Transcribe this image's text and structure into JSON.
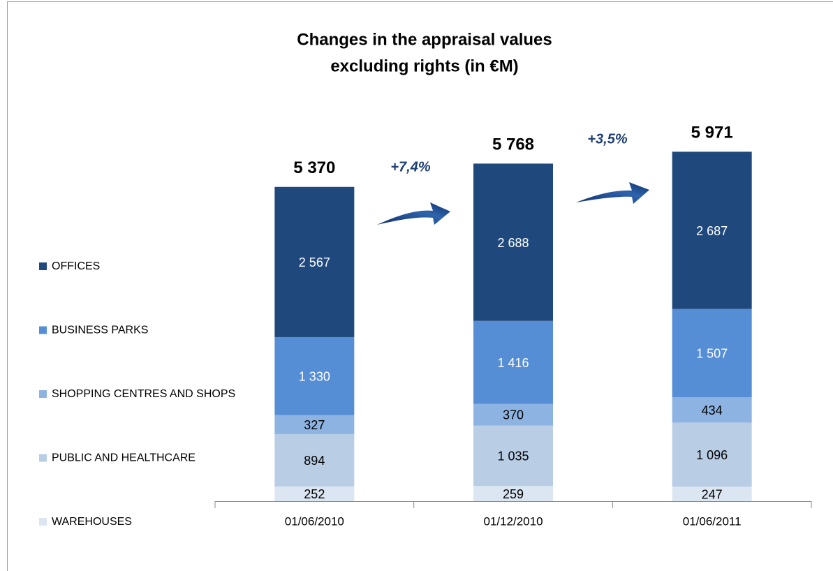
{
  "chart_data": {
    "type": "stacked_bar",
    "title": [
      "Changes in the appraisal values",
      "excluding rights (in €M)"
    ],
    "categories": [
      "01/06/2010",
      "01/12/2010",
      "01/06/2011"
    ],
    "series": [
      {
        "name": "WAREHOUSES",
        "color": "#dce6f2",
        "values": [
          252,
          259,
          247
        ],
        "value_labels": [
          "252",
          "259",
          "247"
        ]
      },
      {
        "name": "PUBLIC AND HEALTHCARE",
        "color": "#b9cde5",
        "values": [
          894,
          1035,
          1096
        ],
        "value_labels": [
          "894",
          "1 035",
          "1 096"
        ]
      },
      {
        "name": "SHOPPING CENTRES AND SHOPS",
        "color": "#8db3e2",
        "values": [
          327,
          370,
          434
        ],
        "value_labels": [
          "327",
          "370",
          "434"
        ]
      },
      {
        "name": "BUSINESS PARKS",
        "color": "#558ed5",
        "values": [
          1330,
          1416,
          1507
        ],
        "value_labels": [
          "1 330",
          "1 416",
          "1 507"
        ]
      },
      {
        "name": "OFFICES",
        "color": "#1f497d",
        "values": [
          2567,
          2688,
          2687
        ],
        "value_labels": [
          "2 567",
          "2 688",
          "2 687"
        ]
      }
    ],
    "totals": [
      5370,
      5768,
      5971
    ],
    "total_labels": [
      "5 370",
      "5 768",
      "5 971"
    ],
    "annotations": [
      "+7,4%",
      "+3,5%"
    ],
    "ylim": [
      0,
      6500
    ]
  }
}
